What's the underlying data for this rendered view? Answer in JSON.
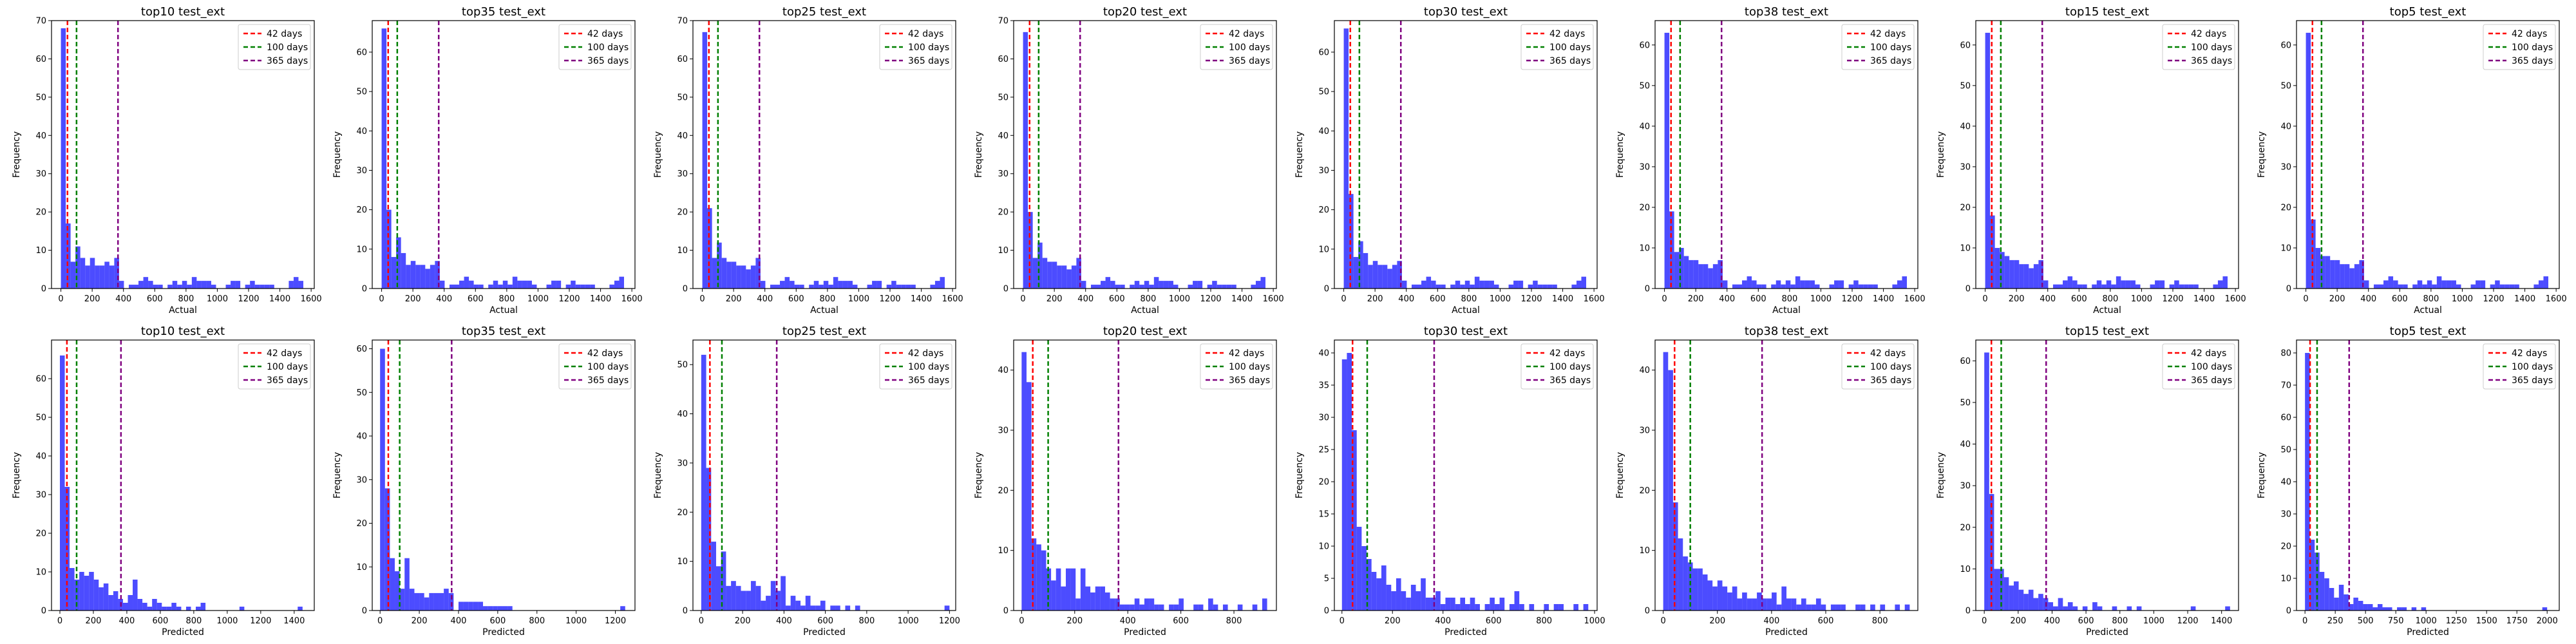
{
  "figure": {
    "legend": [
      {
        "label": "42 days",
        "color": "#ff0000",
        "x": 42
      },
      {
        "label": "100 days",
        "color": "#008000",
        "x": 100
      },
      {
        "label": "365 days",
        "color": "#800080",
        "x": 365
      }
    ],
    "bar_color": "#0000ff",
    "bar_opacity": 0.7,
    "ylabel": "Frequency"
  },
  "chart_data": [
    {
      "type": "bar",
      "title": "top10 test_ext",
      "xlabel": "Actual",
      "ylabel": "Frequency",
      "xlim": [
        -60,
        1620
      ],
      "ylim": [
        0,
        70
      ],
      "xticks": [
        0,
        200,
        400,
        600,
        800,
        1000,
        1200,
        1400,
        1600
      ],
      "yticks": [
        0,
        10,
        20,
        30,
        40,
        50,
        60,
        70
      ],
      "bin_width": 31,
      "x_start": 0,
      "values": [
        68,
        17,
        7,
        11,
        8,
        6,
        8,
        6,
        6,
        7,
        6,
        8,
        2,
        0,
        1,
        1,
        2,
        3,
        2,
        1,
        1,
        0,
        1,
        2,
        1,
        2,
        1,
        3,
        2,
        2,
        2,
        1,
        0,
        0,
        1,
        2,
        2,
        0,
        1,
        2,
        1,
        1,
        1,
        1,
        0,
        0,
        0,
        2,
        3,
        2
      ]
    },
    {
      "type": "bar",
      "title": "top35 test_ext",
      "xlabel": "Actual",
      "ylabel": "Frequency",
      "xlim": [
        -60,
        1620
      ],
      "ylim": [
        0,
        68
      ],
      "xticks": [
        0,
        200,
        400,
        600,
        800,
        1000,
        1200,
        1400,
        1600
      ],
      "yticks": [
        0,
        10,
        20,
        30,
        40,
        50,
        60
      ],
      "bin_width": 31,
      "x_start": 0,
      "values": [
        66,
        20,
        8,
        13,
        9,
        6,
        7,
        6,
        6,
        5,
        6,
        7,
        2,
        0,
        1,
        1,
        2,
        3,
        2,
        1,
        1,
        0,
        1,
        2,
        1,
        2,
        1,
        3,
        2,
        2,
        2,
        1,
        0,
        0,
        1,
        2,
        2,
        0,
        1,
        2,
        1,
        1,
        1,
        1,
        0,
        0,
        0,
        1,
        2,
        3
      ]
    },
    {
      "type": "bar",
      "title": "top25 test_ext",
      "xlabel": "Actual",
      "ylabel": "Frequency",
      "xlim": [
        -60,
        1620
      ],
      "ylim": [
        0,
        70
      ],
      "xticks": [
        0,
        200,
        400,
        600,
        800,
        1000,
        1200,
        1400,
        1600
      ],
      "yticks": [
        0,
        10,
        20,
        30,
        40,
        50,
        60,
        70
      ],
      "bin_width": 31,
      "x_start": 0,
      "values": [
        67,
        21,
        8,
        12,
        8,
        7,
        7,
        6,
        6,
        5,
        6,
        8,
        2,
        0,
        1,
        1,
        2,
        3,
        2,
        1,
        1,
        0,
        1,
        2,
        1,
        2,
        1,
        3,
        2,
        2,
        2,
        1,
        0,
        0,
        1,
        2,
        2,
        0,
        1,
        2,
        1,
        1,
        1,
        1,
        0,
        0,
        0,
        1,
        2,
        3
      ]
    },
    {
      "type": "bar",
      "title": "top20 test_ext",
      "xlabel": "Actual",
      "ylabel": "Frequency",
      "xlim": [
        -60,
        1620
      ],
      "ylim": [
        0,
        70
      ],
      "xticks": [
        0,
        200,
        400,
        600,
        800,
        1000,
        1200,
        1400,
        1600
      ],
      "yticks": [
        0,
        10,
        20,
        30,
        40,
        50,
        60,
        70
      ],
      "bin_width": 31,
      "x_start": 0,
      "values": [
        67,
        20,
        8,
        12,
        8,
        7,
        7,
        6,
        6,
        5,
        6,
        8,
        2,
        0,
        1,
        1,
        2,
        3,
        2,
        1,
        1,
        0,
        1,
        2,
        1,
        2,
        1,
        3,
        2,
        2,
        2,
        1,
        0,
        0,
        1,
        2,
        2,
        0,
        1,
        2,
        1,
        1,
        1,
        1,
        0,
        0,
        0,
        1,
        2,
        3
      ]
    },
    {
      "type": "bar",
      "title": "top30 test_ext",
      "xlabel": "Actual",
      "ylabel": "Frequency",
      "xlim": [
        -60,
        1620
      ],
      "ylim": [
        0,
        68
      ],
      "xticks": [
        0,
        200,
        400,
        600,
        800,
        1000,
        1200,
        1400,
        1600
      ],
      "yticks": [
        0,
        10,
        20,
        30,
        40,
        50,
        60
      ],
      "bin_width": 31,
      "x_start": 0,
      "values": [
        66,
        24,
        8,
        12,
        9,
        6,
        7,
        6,
        6,
        5,
        6,
        7,
        2,
        0,
        1,
        1,
        2,
        3,
        2,
        1,
        1,
        0,
        1,
        2,
        1,
        2,
        1,
        3,
        2,
        2,
        2,
        1,
        0,
        0,
        1,
        2,
        2,
        0,
        1,
        2,
        1,
        1,
        1,
        1,
        0,
        0,
        0,
        1,
        2,
        3
      ]
    },
    {
      "type": "bar",
      "title": "top38 test_ext",
      "xlabel": "Actual",
      "ylabel": "Frequency",
      "xlim": [
        -60,
        1620
      ],
      "ylim": [
        0,
        66
      ],
      "xticks": [
        0,
        200,
        400,
        600,
        800,
        1000,
        1200,
        1400,
        1600
      ],
      "yticks": [
        0,
        10,
        20,
        30,
        40,
        50,
        60
      ],
      "bin_width": 31,
      "x_start": 0,
      "values": [
        63,
        19,
        9,
        10,
        8,
        7,
        7,
        6,
        6,
        5,
        6,
        7,
        2,
        0,
        1,
        1,
        2,
        3,
        2,
        1,
        1,
        0,
        1,
        2,
        1,
        2,
        1,
        3,
        2,
        2,
        2,
        1,
        0,
        0,
        1,
        2,
        2,
        0,
        1,
        2,
        1,
        1,
        1,
        1,
        0,
        0,
        0,
        1,
        2,
        3
      ]
    },
    {
      "type": "bar",
      "title": "top15 test_ext",
      "xlabel": "Actual",
      "ylabel": "Frequency",
      "xlim": [
        -60,
        1620
      ],
      "ylim": [
        0,
        66
      ],
      "xticks": [
        0,
        200,
        400,
        600,
        800,
        1000,
        1200,
        1400,
        1600
      ],
      "yticks": [
        0,
        10,
        20,
        30,
        40,
        50,
        60
      ],
      "bin_width": 31,
      "x_start": 0,
      "values": [
        63,
        18,
        10,
        9,
        8,
        7,
        7,
        6,
        6,
        5,
        6,
        7,
        2,
        0,
        1,
        1,
        2,
        3,
        2,
        1,
        1,
        0,
        1,
        2,
        1,
        2,
        1,
        3,
        2,
        2,
        2,
        1,
        0,
        0,
        1,
        2,
        2,
        0,
        1,
        2,
        1,
        1,
        1,
        1,
        0,
        0,
        0,
        1,
        2,
        3
      ]
    },
    {
      "type": "bar",
      "title": "top5 test_ext",
      "xlabel": "Actual",
      "ylabel": "Frequency",
      "xlim": [
        -60,
        1620
      ],
      "ylim": [
        0,
        66
      ],
      "xticks": [
        0,
        200,
        400,
        600,
        800,
        1000,
        1200,
        1400,
        1600
      ],
      "yticks": [
        0,
        10,
        20,
        30,
        40,
        50,
        60
      ],
      "bin_width": 31,
      "x_start": 0,
      "values": [
        63,
        17,
        10,
        8,
        8,
        7,
        7,
        6,
        6,
        5,
        6,
        7,
        2,
        0,
        1,
        1,
        2,
        3,
        2,
        1,
        1,
        0,
        1,
        2,
        1,
        2,
        1,
        3,
        2,
        2,
        2,
        1,
        0,
        0,
        1,
        2,
        2,
        0,
        1,
        2,
        1,
        1,
        1,
        1,
        0,
        0,
        0,
        1,
        2,
        3
      ]
    },
    {
      "type": "bar",
      "title": "top10 test_ext",
      "xlabel": "Predicted",
      "ylabel": "Frequency",
      "xlim": [
        -50,
        1520
      ],
      "ylim": [
        0,
        70
      ],
      "xticks": [
        0,
        200,
        400,
        600,
        800,
        1000,
        1200,
        1400
      ],
      "yticks": [
        0,
        10,
        20,
        30,
        40,
        50,
        60
      ],
      "bin_width": 29,
      "x_start": 0,
      "values": [
        66,
        32,
        11,
        8,
        10,
        9,
        10,
        8,
        6,
        7,
        4,
        5,
        3,
        2,
        4,
        8,
        3,
        2,
        1,
        3,
        2,
        1,
        1,
        2,
        1,
        0,
        1,
        0,
        1,
        2,
        0,
        0,
        0,
        0,
        0,
        0,
        0,
        1,
        0,
        0,
        0,
        0,
        0,
        0,
        0,
        0,
        0,
        0,
        0,
        1
      ]
    },
    {
      "type": "bar",
      "title": "top35 test_ext",
      "xlabel": "Predicted",
      "ylabel": "Frequency",
      "xlim": [
        -40,
        1300
      ],
      "ylim": [
        0,
        62
      ],
      "xticks": [
        0,
        200,
        400,
        600,
        800,
        1000,
        1200
      ],
      "yticks": [
        0,
        10,
        20,
        30,
        40,
        50,
        60
      ],
      "bin_width": 25,
      "x_start": 0,
      "values": [
        60,
        28,
        12,
        9,
        5,
        12,
        5,
        4,
        4,
        3,
        4,
        4,
        4,
        5,
        4,
        0,
        2,
        2,
        2,
        2,
        2,
        1,
        1,
        1,
        1,
        1,
        1,
        0,
        0,
        0,
        0,
        0,
        0,
        0,
        0,
        0,
        0,
        0,
        0,
        0,
        0,
        0,
        0,
        0,
        0,
        0,
        0,
        0,
        0,
        1
      ]
    },
    {
      "type": "bar",
      "title": "top25 test_ext",
      "xlabel": "Predicted",
      "ylabel": "Frequency",
      "xlim": [
        -40,
        1230
      ],
      "ylim": [
        0,
        55
      ],
      "xticks": [
        0,
        200,
        400,
        600,
        800,
        1000,
        1200
      ],
      "yticks": [
        0,
        10,
        20,
        30,
        40,
        50
      ],
      "bin_width": 24,
      "x_start": 0,
      "values": [
        52,
        29,
        14,
        9,
        12,
        5,
        6,
        5,
        4,
        4,
        6,
        5,
        2,
        3,
        6,
        4,
        7,
        1,
        3,
        2,
        1,
        3,
        1,
        1,
        2,
        0,
        1,
        1,
        0,
        1,
        0,
        1,
        0,
        0,
        0,
        0,
        0,
        0,
        0,
        0,
        0,
        0,
        0,
        0,
        0,
        0,
        0,
        0,
        0,
        1
      ]
    },
    {
      "type": "bar",
      "title": "top20 test_ext",
      "xlabel": "Predicted",
      "ylabel": "Frequency",
      "xlim": [
        -30,
        960
      ],
      "ylim": [
        0,
        45
      ],
      "xticks": [
        0,
        200,
        400,
        600,
        800
      ],
      "yticks": [
        0,
        10,
        20,
        30,
        40
      ],
      "bin_width": 18.5,
      "x_start": 0,
      "values": [
        43,
        38,
        12,
        11,
        10,
        7,
        5,
        7,
        4,
        7,
        7,
        2,
        7,
        4,
        3,
        4,
        4,
        3,
        2,
        2,
        1,
        1,
        1,
        2,
        1,
        2,
        2,
        1,
        1,
        0,
        1,
        1,
        2,
        0,
        0,
        1,
        1,
        0,
        2,
        1,
        0,
        1,
        0,
        0,
        1,
        0,
        0,
        1,
        0,
        2
      ]
    },
    {
      "type": "bar",
      "title": "top30 test_ext",
      "xlabel": "Predicted",
      "ylabel": "Frequency",
      "xlim": [
        -30,
        1010
      ],
      "ylim": [
        0,
        42
      ],
      "xticks": [
        0,
        200,
        400,
        600,
        800,
        1000
      ],
      "yticks": [
        0,
        5,
        10,
        15,
        20,
        25,
        30,
        35,
        40
      ],
      "bin_width": 19.5,
      "x_start": 0,
      "values": [
        39,
        40,
        28,
        13,
        10,
        8,
        6,
        5,
        7,
        4,
        3,
        5,
        3,
        2,
        4,
        3,
        5,
        2,
        2,
        3,
        1,
        2,
        2,
        1,
        2,
        1,
        2,
        1,
        0,
        1,
        2,
        1,
        2,
        0,
        1,
        3,
        1,
        0,
        1,
        0,
        0,
        1,
        0,
        1,
        1,
        0,
        0,
        1,
        0,
        1
      ]
    },
    {
      "type": "bar",
      "title": "top38 test_ext",
      "xlabel": "Predicted",
      "ylabel": "Frequency",
      "xlim": [
        -30,
        940
      ],
      "ylim": [
        0,
        45
      ],
      "xticks": [
        0,
        200,
        400,
        600,
        800
      ],
      "yticks": [
        0,
        10,
        20,
        30,
        40
      ],
      "bin_width": 18.2,
      "x_start": 0,
      "values": [
        43,
        40,
        18,
        12,
        9,
        8,
        7,
        7,
        6,
        5,
        4,
        5,
        4,
        3,
        4,
        2,
        3,
        2,
        2,
        3,
        2,
        2,
        3,
        1,
        4,
        2,
        2,
        1,
        2,
        1,
        1,
        2,
        1,
        0,
        1,
        1,
        1,
        0,
        0,
        1,
        1,
        0,
        1,
        0,
        1,
        0,
        0,
        1,
        0,
        1
      ]
    },
    {
      "type": "bar",
      "title": "top15 test_ext",
      "xlabel": "Predicted",
      "ylabel": "Frequency",
      "xlim": [
        -50,
        1500
      ],
      "ylim": [
        0,
        65
      ],
      "xticks": [
        0,
        200,
        400,
        600,
        800,
        1000,
        1200,
        1400
      ],
      "yticks": [
        0,
        10,
        20,
        30,
        40,
        50,
        60
      ],
      "bin_width": 29,
      "x_start": 0,
      "values": [
        62,
        28,
        10,
        10,
        8,
        6,
        7,
        5,
        4,
        5,
        3,
        4,
        3,
        2,
        1,
        3,
        1,
        2,
        1,
        0,
        1,
        0,
        2,
        1,
        0,
        0,
        1,
        0,
        0,
        1,
        0,
        1,
        0,
        0,
        0,
        0,
        0,
        0,
        0,
        0,
        0,
        0,
        1,
        0,
        0,
        0,
        0,
        0,
        0,
        1
      ]
    },
    {
      "type": "bar",
      "title": "top5 test_ext",
      "xlabel": "Predicted",
      "ylabel": "Frequency",
      "xlim": [
        -70,
        2100
      ],
      "ylim": [
        0,
        84
      ],
      "xticks": [
        0,
        250,
        500,
        750,
        1000,
        1250,
        1500,
        1750,
        2000
      ],
      "yticks": [
        0,
        10,
        20,
        30,
        40,
        50,
        60,
        70,
        80
      ],
      "bin_width": 40,
      "x_start": 0,
      "values": [
        80,
        22,
        18,
        12,
        10,
        7,
        4,
        8,
        5,
        2,
        4,
        3,
        2,
        2,
        1,
        2,
        1,
        1,
        0,
        1,
        1,
        0,
        1,
        0,
        1,
        0,
        0,
        0,
        0,
        0,
        0,
        0,
        0,
        0,
        0,
        0,
        0,
        0,
        0,
        0,
        0,
        0,
        0,
        0,
        0,
        0,
        0,
        0,
        0,
        1
      ]
    }
  ]
}
